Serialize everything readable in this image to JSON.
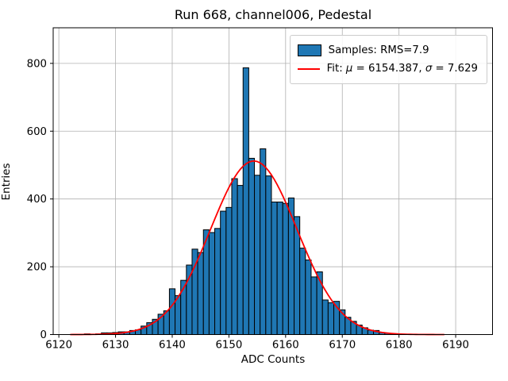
{
  "figure": {
    "title": "Run 668, channel006, Pedestal",
    "xlabel": "ADC Counts",
    "ylabel": "Entries"
  },
  "legend": {
    "samples_label": "Samples: RMS=7.9",
    "fit_label": "Fit: μ = 6154.387, σ = 7.629"
  },
  "colors": {
    "bar_fill": "#1f77b4",
    "bar_edge": "#000000",
    "fit_line": "#ff0000",
    "grid": "#b0b0b0",
    "spine": "#000000",
    "background": "#ffffff",
    "text": "#000000"
  },
  "chart_data": {
    "type": "bar",
    "subtype": "histogram",
    "title": "Run 668, channel006, Pedestal",
    "xlabel": "ADC Counts",
    "ylabel": "Entries",
    "xlim": [
      6119,
      6196.5
    ],
    "ylim": [
      0,
      905
    ],
    "xticks": [
      6120,
      6130,
      6140,
      6150,
      6160,
      6170,
      6180,
      6190
    ],
    "yticks": [
      0,
      200,
      400,
      600,
      800
    ],
    "grid": true,
    "legend_position": "upper right",
    "legend_entries": [
      "Samples: RMS=7.9",
      "Fit: μ = 6154.387, σ = 7.629"
    ],
    "bin_start": 6124,
    "bin_width": 1,
    "counts": [
      1,
      2,
      1,
      2,
      5,
      5,
      6,
      8,
      8,
      12,
      14,
      25,
      35,
      45,
      60,
      70,
      135,
      115,
      160,
      205,
      252,
      242,
      309,
      301,
      313,
      364,
      375,
      460,
      440,
      787,
      520,
      470,
      548,
      468,
      391,
      391,
      387,
      403,
      348,
      255,
      220,
      170,
      185,
      102,
      94,
      98,
      73,
      51,
      39,
      28,
      20,
      13,
      12,
      6,
      4,
      2,
      2,
      1
    ],
    "fit": {
      "type": "gaussian",
      "mu": 6154.387,
      "sigma": 7.629,
      "amplitude": 512,
      "domain": [
        6122,
        6188
      ]
    },
    "sample_rms": 7.9
  }
}
